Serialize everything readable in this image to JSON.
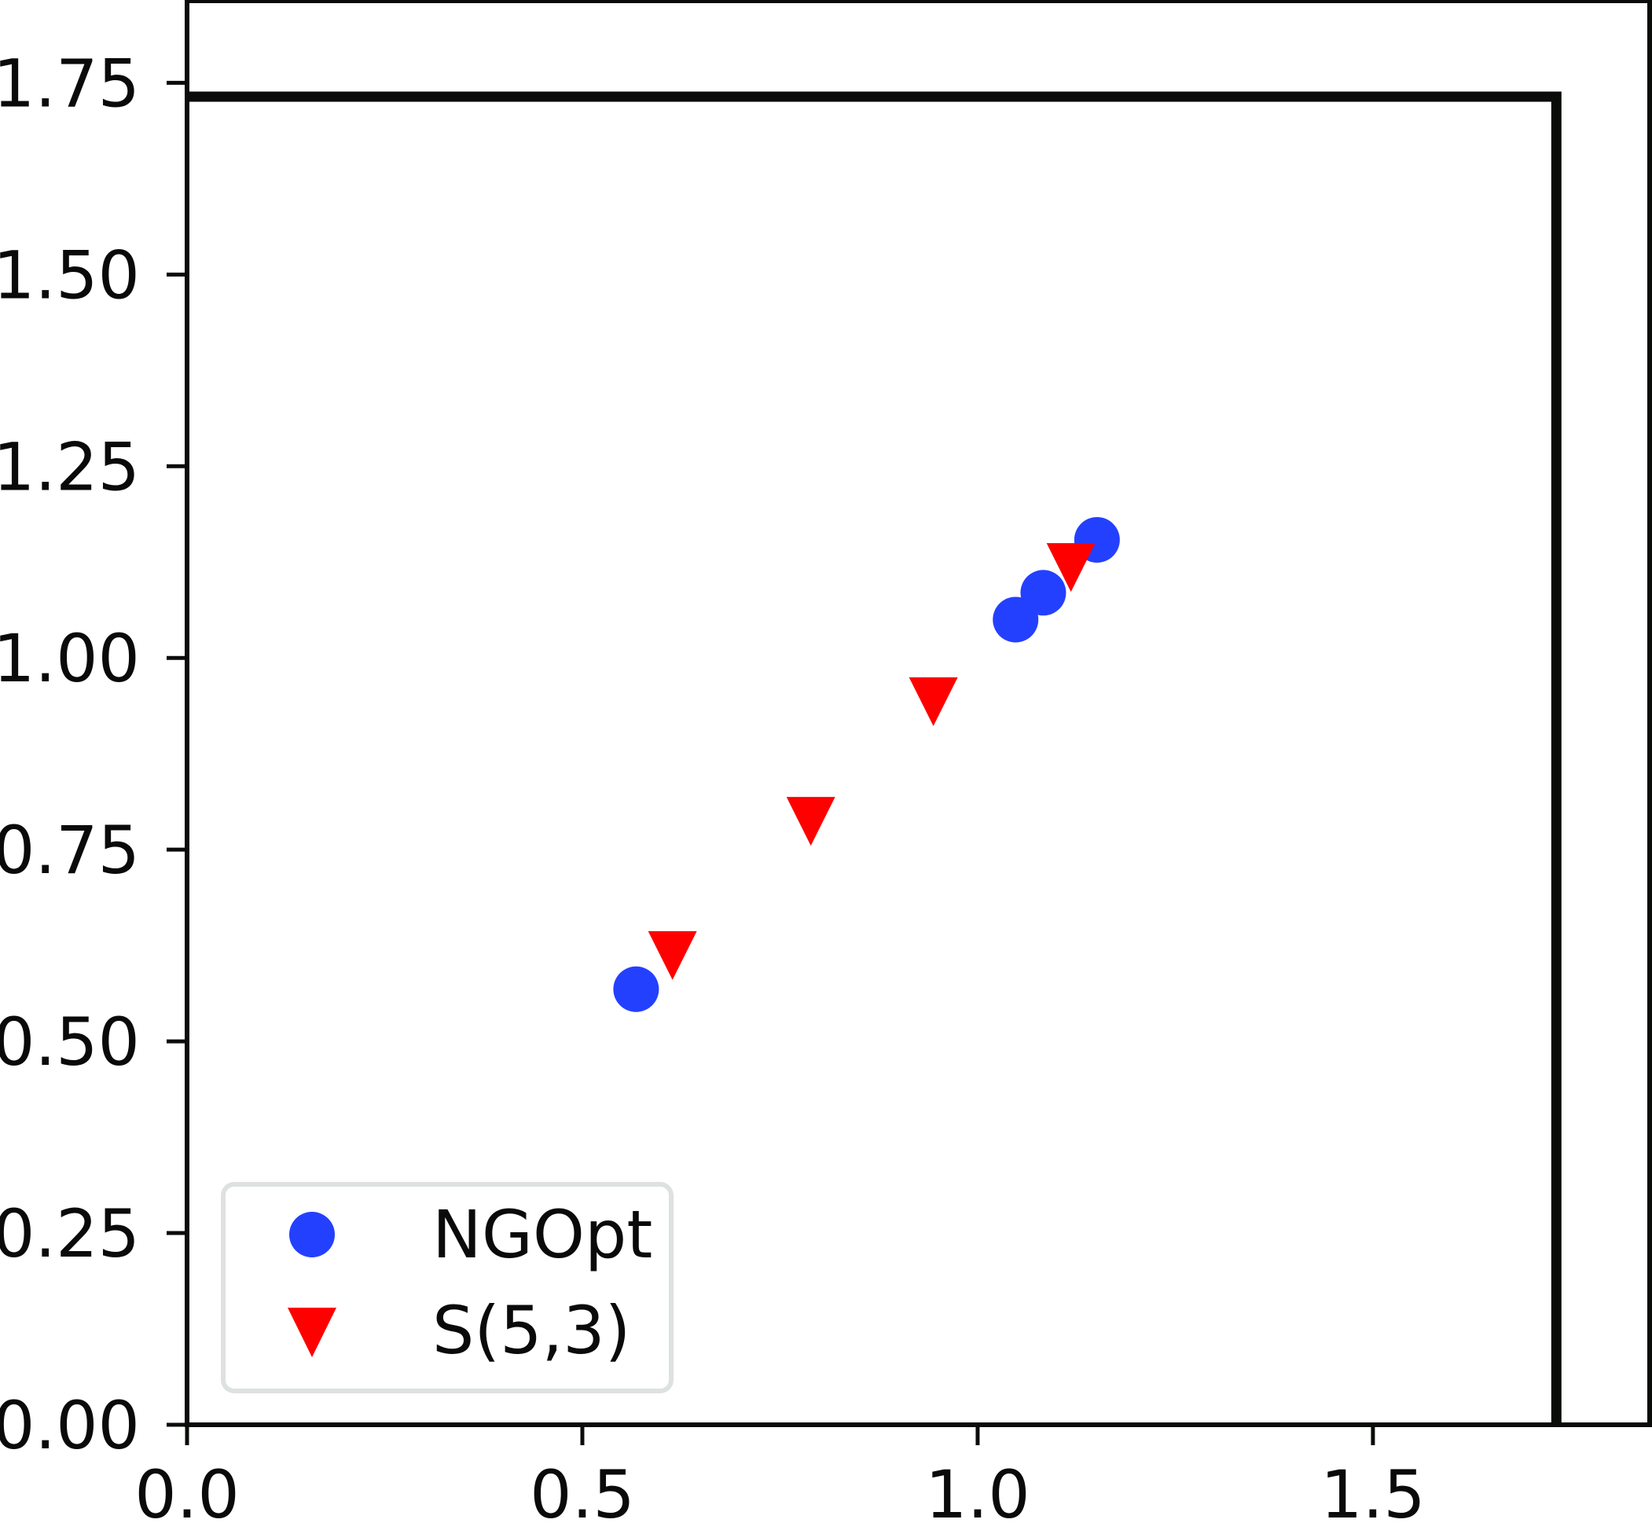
{
  "chart_data": {
    "type": "scatter",
    "title": "",
    "xlabel": "",
    "ylabel": "",
    "xlim": [
      0,
      1.85
    ],
    "ylim": [
      0,
      1.857
    ],
    "grid": false,
    "legend_position": "lower left",
    "x_ticks": [
      0.0,
      0.5,
      1.0,
      1.5
    ],
    "x_tick_labels": [
      "0.0",
      "0.5",
      "1.0",
      "1.5"
    ],
    "y_ticks": [
      0.0,
      0.25,
      0.5,
      0.75,
      1.0,
      1.25,
      1.5,
      1.75
    ],
    "y_tick_labels": [
      "0.00",
      "0.25",
      "0.50",
      "0.75",
      "1.00",
      "1.25",
      "1.50",
      "1.75"
    ],
    "series": [
      {
        "name": "NGOpt",
        "marker": "circle",
        "color": "#2440ff",
        "x": [
          0.568,
          1.048,
          1.083,
          1.151
        ],
        "y": [
          0.568,
          1.05,
          1.085,
          1.154
        ]
      },
      {
        "name": "S(5,3)",
        "marker": "triangle-down",
        "color": "#ff0000",
        "x": [
          0.614,
          0.789,
          0.944,
          1.118
        ],
        "y": [
          0.612,
          0.787,
          0.943,
          1.118
        ]
      }
    ],
    "annotations": [
      {
        "type": "bounding-square",
        "description": "Thick black line from (0, 1.732) to (1.732, 1.732) to (1.732, 0)",
        "size": 1.732,
        "color": "#0a0c0a"
      }
    ]
  },
  "legend": {
    "items": [
      {
        "label": "NGOpt",
        "marker": "circle",
        "color": "#2440ff"
      },
      {
        "label": "S(5,3)",
        "marker": "triangle-down",
        "color": "#ff0000"
      }
    ],
    "border_color": "#dde2e0"
  }
}
